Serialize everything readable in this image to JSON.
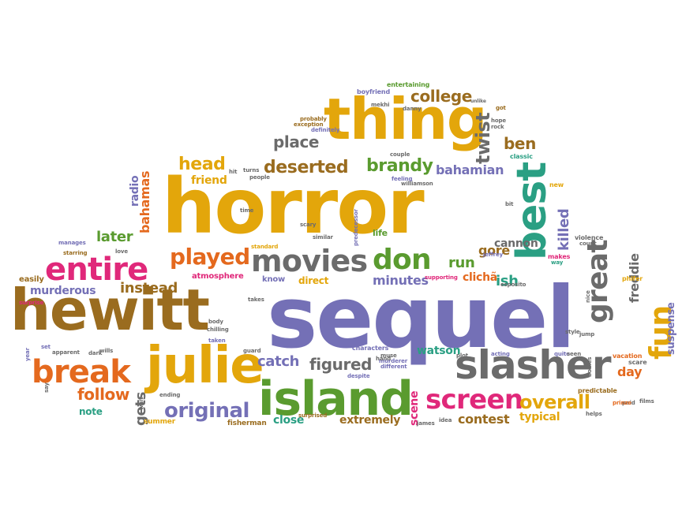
{
  "palette": {
    "gold": "#e3a60b",
    "brown": "#9a6c1f",
    "purple": "#7470b6",
    "green": "#5a9b2f",
    "gray": "#6b6b6b",
    "orange": "#e4691e",
    "pink": "#e0287a",
    "teal": "#2a9f83"
  },
  "words": [
    {
      "text": "sequel",
      "color": "purple"
    },
    {
      "text": "horror",
      "color": "gold"
    },
    {
      "text": "hewitt",
      "color": "brown"
    },
    {
      "text": "thing",
      "color": "gold"
    },
    {
      "text": "island",
      "color": "green"
    },
    {
      "text": "slasher",
      "color": "gray"
    },
    {
      "text": "julie",
      "color": "gold"
    },
    {
      "text": "best",
      "color": "teal"
    },
    {
      "text": "movies",
      "color": "gray"
    },
    {
      "text": "entire",
      "color": "pink"
    },
    {
      "text": "break",
      "color": "orange"
    },
    {
      "text": "screen",
      "color": "pink"
    },
    {
      "text": "don",
      "color": "green"
    },
    {
      "text": "played",
      "color": "orange"
    },
    {
      "text": "great",
      "color": "gray"
    },
    {
      "text": "fun",
      "color": "gold"
    },
    {
      "text": "original",
      "color": "purple"
    },
    {
      "text": "overall",
      "color": "gold"
    },
    {
      "text": "deserted",
      "color": "brown"
    },
    {
      "text": "brandy",
      "color": "green"
    },
    {
      "text": "college",
      "color": "brown"
    },
    {
      "text": "twist",
      "color": "gray"
    },
    {
      "text": "ben",
      "color": "brown"
    },
    {
      "text": "head",
      "color": "gold"
    },
    {
      "text": "place",
      "color": "gray"
    },
    {
      "text": "figured",
      "color": "gray"
    },
    {
      "text": "follow",
      "color": "orange"
    },
    {
      "text": "catch",
      "color": "purple"
    },
    {
      "text": "later",
      "color": "green"
    },
    {
      "text": "instead",
      "color": "brown"
    },
    {
      "text": "murderous",
      "color": "purple"
    },
    {
      "text": "bahamian",
      "color": "purple"
    },
    {
      "text": "bahamas",
      "color": "orange"
    },
    {
      "text": "killed",
      "color": "purple"
    },
    {
      "text": "freddie",
      "color": "gray"
    },
    {
      "text": "gore",
      "color": "brown"
    },
    {
      "text": "ish",
      "color": "teal"
    },
    {
      "text": "run",
      "color": "green"
    },
    {
      "text": "cannon",
      "color": "gray"
    },
    {
      "text": "clichã",
      "color": "orange"
    },
    {
      "text": "minutes",
      "color": "purple"
    },
    {
      "text": "day",
      "color": "orange"
    },
    {
      "text": "gets",
      "color": "gray"
    },
    {
      "text": "scene",
      "color": "pink"
    },
    {
      "text": "contest",
      "color": "brown"
    },
    {
      "text": "typical",
      "color": "gold"
    },
    {
      "text": "extremely",
      "color": "brown"
    },
    {
      "text": "close",
      "color": "teal"
    },
    {
      "text": "watson",
      "color": "teal"
    },
    {
      "text": "friend",
      "color": "gold"
    },
    {
      "text": "radio",
      "color": "purple"
    },
    {
      "text": "note",
      "color": "teal"
    },
    {
      "text": "suspense",
      "color": "purple"
    },
    {
      "text": "know",
      "color": "purple"
    },
    {
      "text": "direct",
      "color": "gold"
    },
    {
      "text": "life",
      "color": "green"
    },
    {
      "text": "atmosphere",
      "color": "pink"
    },
    {
      "text": "easily",
      "color": "brown"
    },
    {
      "text": "fisherman",
      "color": "brown"
    },
    {
      "text": "summer",
      "color": "gold"
    },
    {
      "text": "entertaining",
      "color": "green"
    },
    {
      "text": "boyfriend",
      "color": "purple"
    },
    {
      "text": "probably",
      "color": "brown"
    },
    {
      "text": "exception",
      "color": "brown"
    },
    {
      "text": "definitely",
      "color": "purple"
    },
    {
      "text": "danny",
      "color": "gray"
    },
    {
      "text": "unlike",
      "color": "gray"
    },
    {
      "text": "hope",
      "color": "gray"
    },
    {
      "text": "rock",
      "color": "gray"
    },
    {
      "text": "got",
      "color": "brown"
    },
    {
      "text": "classic",
      "color": "teal"
    },
    {
      "text": "couple",
      "color": "gray"
    },
    {
      "text": "feeling",
      "color": "purple"
    },
    {
      "text": "williamson",
      "color": "gray"
    },
    {
      "text": "people",
      "color": "gray"
    },
    {
      "text": "turns",
      "color": "gray"
    },
    {
      "text": "hit",
      "color": "gray"
    },
    {
      "text": "time",
      "color": "gray"
    },
    {
      "text": "scary",
      "color": "gray"
    },
    {
      "text": "similar",
      "color": "gray"
    },
    {
      "text": "standard",
      "color": "gold"
    },
    {
      "text": "predecessor",
      "color": "purple"
    },
    {
      "text": "new",
      "color": "gold"
    },
    {
      "text": "bit",
      "color": "gray"
    },
    {
      "text": "violence",
      "color": "gray"
    },
    {
      "text": "count",
      "color": "gray"
    },
    {
      "text": "makes",
      "color": "pink"
    },
    {
      "text": "way",
      "color": "teal"
    },
    {
      "text": "jeffrey",
      "color": "purple"
    },
    {
      "text": "manages",
      "color": "purple"
    },
    {
      "text": "starring",
      "color": "brown"
    },
    {
      "text": "love",
      "color": "gray"
    },
    {
      "text": "phifer",
      "color": "gold"
    },
    {
      "text": "supporting",
      "color": "pink"
    },
    {
      "text": "esposito",
      "color": "gray"
    },
    {
      "text": "nice",
      "color": "gray"
    },
    {
      "text": "surprise",
      "color": "pink"
    },
    {
      "text": "takes",
      "color": "gray"
    },
    {
      "text": "body",
      "color": "gray"
    },
    {
      "text": "chilling",
      "color": "gray"
    },
    {
      "text": "taken",
      "color": "purple"
    },
    {
      "text": "set",
      "color": "purple"
    },
    {
      "text": "apparent",
      "color": "gray"
    },
    {
      "text": "dark",
      "color": "gray"
    },
    {
      "text": "wills",
      "color": "gray"
    },
    {
      "text": "guard",
      "color": "gray"
    },
    {
      "text": "characters",
      "color": "purple"
    },
    {
      "text": "muse",
      "color": "gray"
    },
    {
      "text": "murderer",
      "color": "purple"
    },
    {
      "text": "different",
      "color": "purple"
    },
    {
      "text": "despite",
      "color": "purple"
    },
    {
      "text": "plot",
      "color": "gray"
    },
    {
      "text": "acting",
      "color": "purple"
    },
    {
      "text": "quite",
      "color": "purple"
    },
    {
      "text": "seen",
      "color": "gray"
    },
    {
      "text": "vacation",
      "color": "orange"
    },
    {
      "text": "scare",
      "color": "gray"
    },
    {
      "text": "bodies",
      "color": "gray"
    },
    {
      "text": "predictable",
      "color": "brown"
    },
    {
      "text": "paid",
      "color": "gray"
    },
    {
      "text": "films",
      "color": "gray"
    },
    {
      "text": "helps",
      "color": "gray"
    },
    {
      "text": "year",
      "color": "purple"
    },
    {
      "text": "say",
      "color": "gray"
    },
    {
      "text": "ending",
      "color": "gray"
    },
    {
      "text": "wait",
      "color": "gray"
    },
    {
      "text": "surprised",
      "color": "brown"
    },
    {
      "text": "james",
      "color": "gray"
    },
    {
      "text": "idea",
      "color": "gray"
    },
    {
      "text": "style",
      "color": "gray"
    },
    {
      "text": "jump",
      "color": "gray"
    },
    {
      "text": "mekhi",
      "color": "gray"
    },
    {
      "text": "hand",
      "color": "gray"
    },
    {
      "text": "prinze",
      "color": "orange"
    }
  ]
}
